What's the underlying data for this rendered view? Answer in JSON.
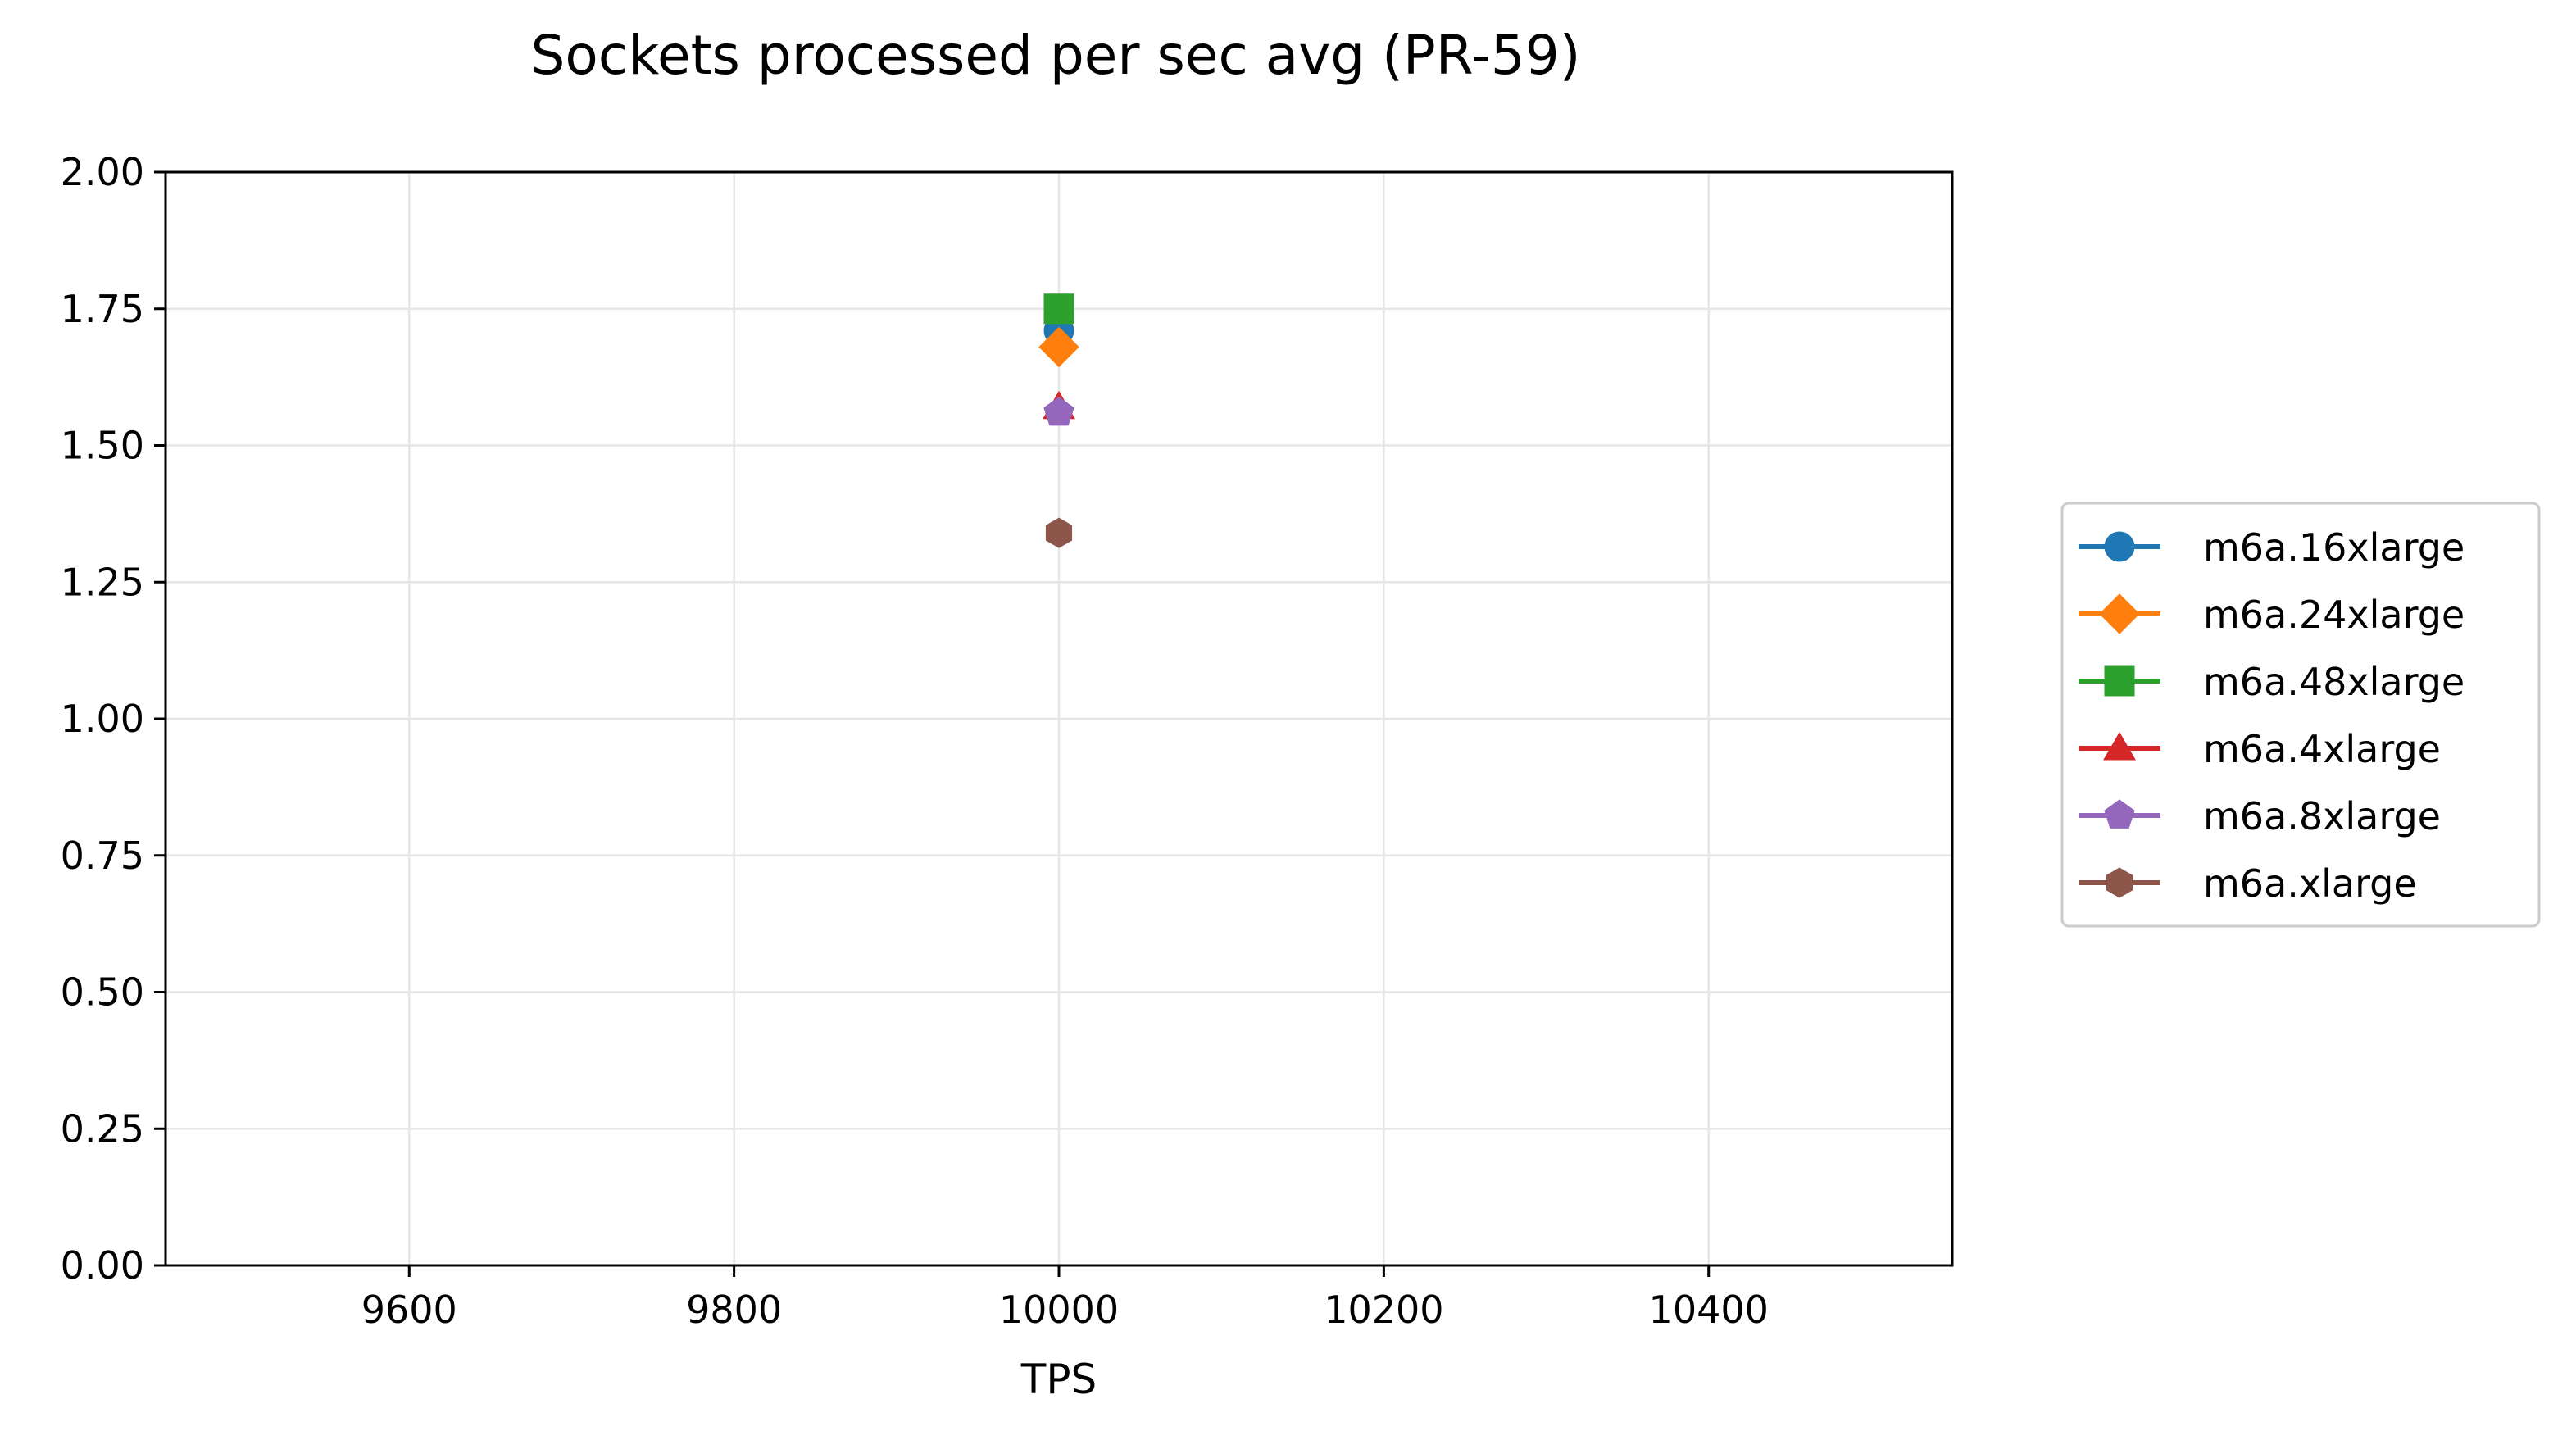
{
  "chart_data": {
    "type": "scatter",
    "title": "Sockets processed per sec avg (PR-59)",
    "xlabel": "TPS",
    "ylabel": "",
    "xlim": [
      9450,
      10550
    ],
    "ylim": [
      0,
      2
    ],
    "xticks": [
      9600,
      9800,
      10000,
      10200,
      10400
    ],
    "xtick_labels": [
      "9600",
      "9800",
      "10000",
      "10200",
      "10400"
    ],
    "yticks": [
      0,
      0.25,
      0.5,
      0.75,
      1.0,
      1.25,
      1.5,
      1.75,
      2.0
    ],
    "ytick_labels": [
      "0.00",
      "0.25",
      "0.50",
      "0.75",
      "1.00",
      "1.25",
      "1.50",
      "1.75",
      "2.00"
    ],
    "grid": true,
    "legend_position": "center-right, outside plot",
    "series": [
      {
        "name": "m6a.16xlarge",
        "color": "#1f77b4",
        "marker": "circle",
        "x": [
          10000
        ],
        "y": [
          1.71
        ]
      },
      {
        "name": "m6a.24xlarge",
        "color": "#ff7f0e",
        "marker": "diamond",
        "x": [
          10000
        ],
        "y": [
          1.68
        ]
      },
      {
        "name": "m6a.48xlarge",
        "color": "#2ca02c",
        "marker": "square",
        "x": [
          10000
        ],
        "y": [
          1.75
        ]
      },
      {
        "name": "m6a.4xlarge",
        "color": "#d62728",
        "marker": "triangle-up",
        "x": [
          10000
        ],
        "y": [
          1.57
        ]
      },
      {
        "name": "m6a.8xlarge",
        "color": "#9467bd",
        "marker": "pentagon",
        "x": [
          10000
        ],
        "y": [
          1.56
        ]
      },
      {
        "name": "m6a.xlarge",
        "color": "#8c564b",
        "marker": "hexagon",
        "x": [
          10000
        ],
        "y": [
          1.34
        ]
      }
    ]
  }
}
